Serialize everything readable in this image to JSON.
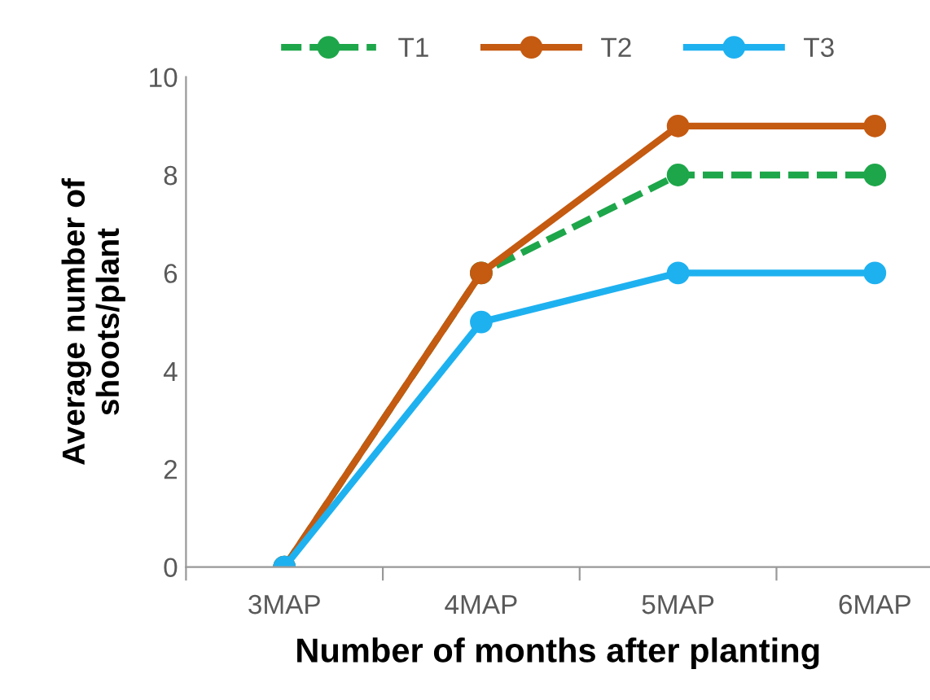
{
  "chart_data": {
    "type": "line",
    "xlabel": "Number of months after planting",
    "ylabel": "Average number of\nshoots/plant",
    "categories": [
      "3MAP",
      "4MAP",
      "5MAP",
      "6MAP"
    ],
    "series": [
      {
        "name": "T1",
        "color": "#1ea64a",
        "values": [
          0,
          6,
          8,
          8
        ],
        "line_style": "dashed"
      },
      {
        "name": "T2",
        "color": "#c55a11",
        "values": [
          0,
          6,
          9,
          9
        ],
        "line_style": "solid"
      },
      {
        "name": "T3",
        "color": "#1eb1f0",
        "values": [
          0,
          5,
          6,
          6
        ],
        "line_style": "solid"
      }
    ],
    "ylim": [
      0,
      10
    ],
    "yticks": [
      0,
      2,
      4,
      6,
      8,
      10
    ],
    "grid": false,
    "legend": "top",
    "marker": "circle"
  }
}
